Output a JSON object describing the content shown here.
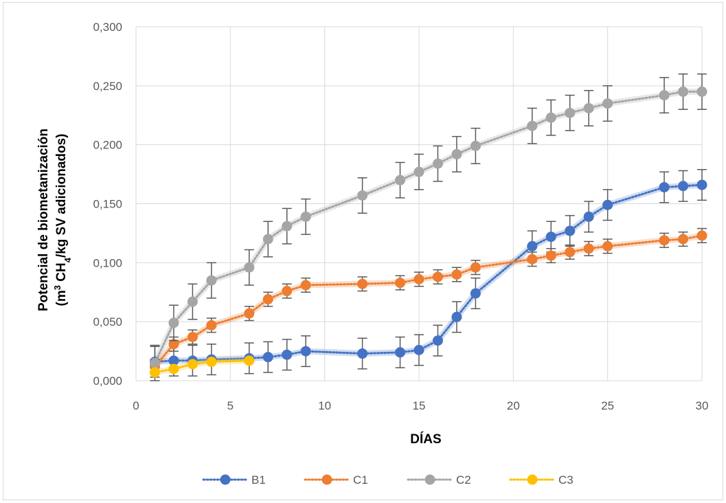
{
  "chart_data": {
    "type": "line",
    "xlabel": "DÍAS",
    "ylabel_line1": "Potencial de biometanización",
    "ylabel_line2_parts": [
      "(m",
      "3",
      " CH",
      "4",
      "/kg SV adicionados)"
    ],
    "xlim": [
      0,
      30
    ],
    "ylim": [
      0,
      0.3
    ],
    "x_ticks": [
      "0",
      "5",
      "10",
      "15",
      "20",
      "25",
      "30"
    ],
    "y_ticks": [
      "0,000",
      "0,050",
      "0,100",
      "0,150",
      "0,200",
      "0,250",
      "0,300"
    ],
    "x_tick_values": [
      0,
      5,
      10,
      15,
      20,
      25,
      30
    ],
    "y_tick_values": [
      0,
      0.05,
      0.1,
      0.15,
      0.2,
      0.25,
      0.3
    ],
    "grid": true,
    "legend_position": "bottom",
    "series": [
      {
        "name": "B1",
        "color": "#4472c4",
        "x": [
          1,
          2,
          3,
          4,
          6,
          7,
          8,
          9,
          12,
          14,
          15,
          16,
          17,
          18,
          21,
          22,
          23,
          24,
          25,
          28,
          29,
          30
        ],
        "y": [
          0.016,
          0.017,
          0.017,
          0.018,
          0.019,
          0.02,
          0.022,
          0.025,
          0.023,
          0.024,
          0.026,
          0.034,
          0.054,
          0.074,
          0.114,
          0.122,
          0.127,
          0.139,
          0.149,
          0.164,
          0.165,
          0.166
        ],
        "err": [
          0.013,
          0.013,
          0.013,
          0.013,
          0.013,
          0.013,
          0.013,
          0.013,
          0.013,
          0.013,
          0.013,
          0.013,
          0.013,
          0.013,
          0.013,
          0.013,
          0.013,
          0.013,
          0.013,
          0.013,
          0.013,
          0.013
        ]
      },
      {
        "name": "C1",
        "color": "#ed7d31",
        "x": [
          1,
          2,
          3,
          4,
          6,
          7,
          8,
          9,
          12,
          14,
          15,
          16,
          17,
          18,
          21,
          22,
          23,
          24,
          25,
          28,
          29,
          30
        ],
        "y": [
          0.012,
          0.031,
          0.037,
          0.047,
          0.057,
          0.069,
          0.076,
          0.081,
          0.082,
          0.083,
          0.086,
          0.088,
          0.09,
          0.096,
          0.103,
          0.106,
          0.109,
          0.112,
          0.114,
          0.119,
          0.12,
          0.123
        ],
        "err": [
          0.006,
          0.006,
          0.006,
          0.006,
          0.006,
          0.006,
          0.006,
          0.006,
          0.006,
          0.006,
          0.006,
          0.006,
          0.006,
          0.006,
          0.006,
          0.006,
          0.006,
          0.006,
          0.006,
          0.006,
          0.006,
          0.006
        ]
      },
      {
        "name": "C2",
        "color": "#a5a5a5",
        "x": [
          1,
          2,
          3,
          4,
          6,
          7,
          8,
          9,
          12,
          14,
          15,
          16,
          17,
          18,
          21,
          22,
          23,
          24,
          25,
          28,
          29,
          30
        ],
        "y": [
          0.015,
          0.049,
          0.067,
          0.085,
          0.096,
          0.12,
          0.131,
          0.139,
          0.157,
          0.17,
          0.177,
          0.184,
          0.192,
          0.199,
          0.216,
          0.223,
          0.227,
          0.231,
          0.235,
          0.242,
          0.245,
          0.245
        ],
        "err": [
          0.015,
          0.015,
          0.015,
          0.015,
          0.015,
          0.015,
          0.015,
          0.015,
          0.015,
          0.015,
          0.015,
          0.015,
          0.015,
          0.015,
          0.015,
          0.015,
          0.015,
          0.015,
          0.015,
          0.015,
          0.015,
          0.015
        ]
      },
      {
        "name": "C3",
        "color": "#ffc000",
        "x": [
          1,
          2,
          3,
          4,
          6
        ],
        "y": [
          0.007,
          0.01,
          0.014,
          0.016,
          0.017
        ],
        "err": [
          0,
          0,
          0,
          0,
          0
        ]
      }
    ]
  }
}
